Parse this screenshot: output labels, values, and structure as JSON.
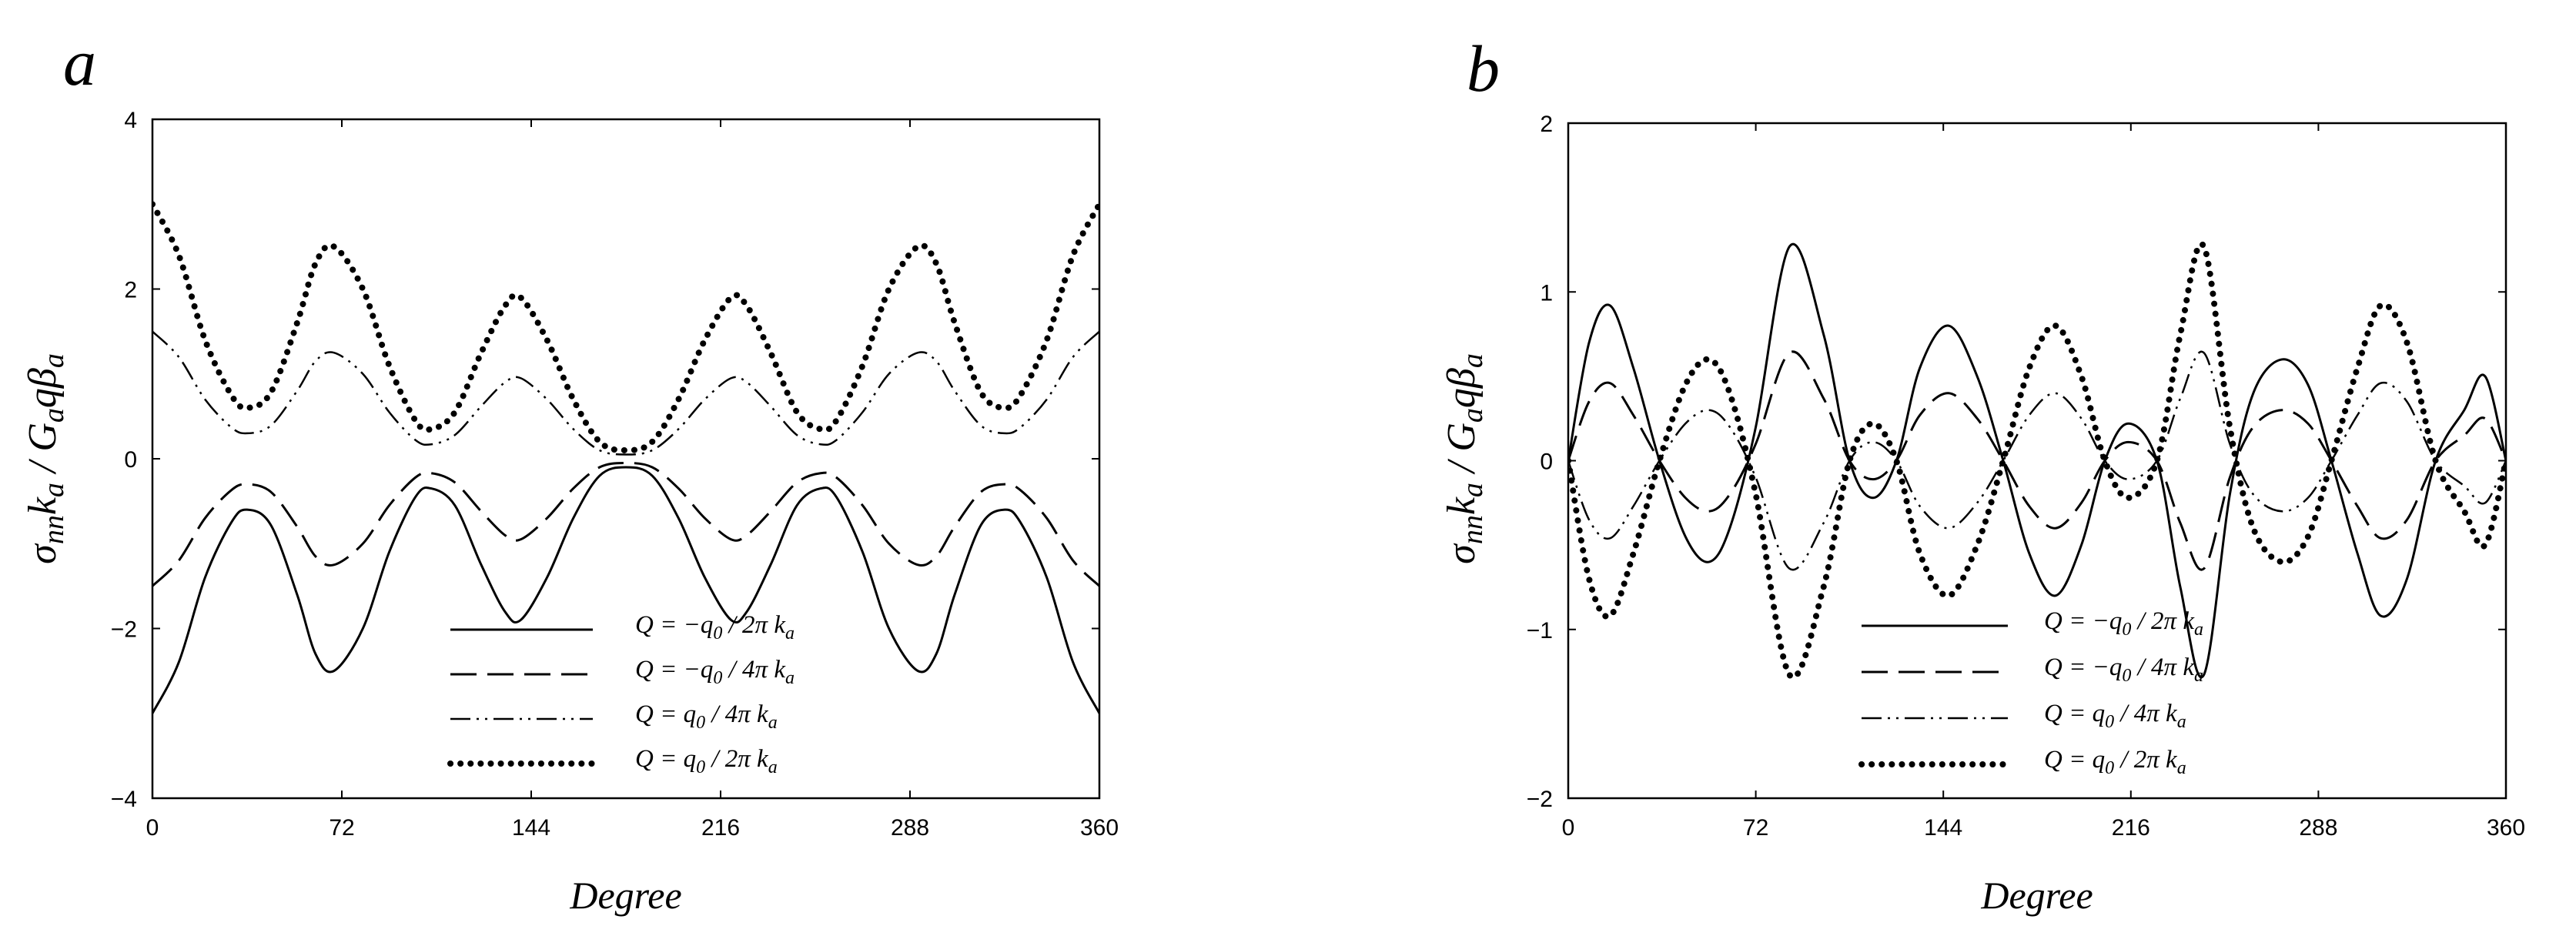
{
  "chart_data": [
    {
      "type": "line",
      "panel_label": "a",
      "xlabel": "Degree",
      "ylabel": "σnnka / Gaqβa",
      "x_ticks": [
        "0",
        "72",
        "144",
        "216",
        "288",
        "360"
      ],
      "y_ticks": [
        "−4",
        "−2",
        "0",
        "2",
        "4"
      ],
      "xlim": [
        0,
        360
      ],
      "ylim": [
        -4,
        4
      ],
      "grid": false,
      "legend_position": "bottom-center",
      "series": [
        {
          "name": "Q = −q0 / 2π ka",
          "style": "solid",
          "x": [
            0,
            10,
            20,
            30,
            36,
            45,
            55,
            62,
            69,
            80,
            90,
            100,
            106,
            115,
            125,
            134,
            140,
            150,
            160,
            170,
            180,
            190,
            200,
            210,
            220,
            226,
            235,
            245,
            254,
            260,
            270,
            280,
            291,
            298,
            305,
            315,
            324,
            330,
            340,
            350,
            360
          ],
          "y": [
            -3.0,
            -2.4,
            -1.4,
            -0.75,
            -0.6,
            -0.78,
            -1.6,
            -2.3,
            -2.5,
            -2.0,
            -1.1,
            -0.45,
            -0.35,
            -0.55,
            -1.25,
            -1.8,
            -1.9,
            -1.4,
            -0.7,
            -0.2,
            -0.1,
            -0.2,
            -0.7,
            -1.4,
            -1.9,
            -1.8,
            -1.25,
            -0.55,
            -0.35,
            -0.45,
            -1.1,
            -2.0,
            -2.5,
            -2.3,
            -1.6,
            -0.78,
            -0.6,
            -0.75,
            -1.4,
            -2.4,
            -3.0
          ]
        },
        {
          "name": "Q = −q0 / 4π ka",
          "style": "dashed",
          "x": [
            0,
            10,
            20,
            30,
            36,
            45,
            55,
            62,
            69,
            80,
            90,
            100,
            106,
            115,
            125,
            134,
            140,
            150,
            160,
            170,
            180,
            190,
            200,
            210,
            220,
            226,
            235,
            245,
            254,
            260,
            270,
            280,
            291,
            298,
            305,
            315,
            324,
            330,
            340,
            350,
            360
          ],
          "y": [
            -1.5,
            -1.2,
            -0.7,
            -0.37,
            -0.3,
            -0.39,
            -0.8,
            -1.15,
            -1.25,
            -1.0,
            -0.55,
            -0.22,
            -0.17,
            -0.28,
            -0.62,
            -0.9,
            -0.95,
            -0.7,
            -0.35,
            -0.1,
            -0.05,
            -0.1,
            -0.35,
            -0.7,
            -0.95,
            -0.9,
            -0.62,
            -0.28,
            -0.17,
            -0.22,
            -0.55,
            -1.0,
            -1.25,
            -1.15,
            -0.8,
            -0.39,
            -0.3,
            -0.37,
            -0.7,
            -1.2,
            -1.5
          ]
        },
        {
          "name": "Q = q0 / 4π ka",
          "style": "dash-dot-dot",
          "x": [
            0,
            10,
            20,
            30,
            36,
            45,
            55,
            62,
            69,
            80,
            90,
            100,
            106,
            115,
            125,
            134,
            140,
            150,
            160,
            170,
            180,
            190,
            200,
            210,
            220,
            226,
            235,
            245,
            254,
            260,
            270,
            280,
            291,
            298,
            305,
            315,
            324,
            330,
            340,
            350,
            360
          ],
          "y": [
            1.5,
            1.2,
            0.7,
            0.37,
            0.3,
            0.39,
            0.8,
            1.15,
            1.25,
            1.0,
            0.55,
            0.22,
            0.17,
            0.28,
            0.62,
            0.9,
            0.95,
            0.7,
            0.35,
            0.1,
            0.05,
            0.1,
            0.35,
            0.7,
            0.95,
            0.9,
            0.62,
            0.28,
            0.17,
            0.22,
            0.55,
            1.0,
            1.25,
            1.15,
            0.8,
            0.39,
            0.3,
            0.37,
            0.7,
            1.2,
            1.5
          ]
        },
        {
          "name": "Q = q0 / 2π ka",
          "style": "dotted",
          "x": [
            0,
            10,
            20,
            30,
            36,
            45,
            55,
            62,
            69,
            80,
            90,
            100,
            106,
            115,
            125,
            134,
            140,
            150,
            160,
            170,
            180,
            190,
            200,
            210,
            220,
            226,
            235,
            245,
            254,
            260,
            270,
            280,
            291,
            298,
            305,
            315,
            324,
            330,
            340,
            350,
            360
          ],
          "y": [
            3.0,
            2.4,
            1.4,
            0.75,
            0.6,
            0.78,
            1.6,
            2.3,
            2.5,
            2.0,
            1.1,
            0.45,
            0.35,
            0.55,
            1.25,
            1.8,
            1.9,
            1.4,
            0.7,
            0.2,
            0.1,
            0.2,
            0.7,
            1.4,
            1.9,
            1.8,
            1.25,
            0.55,
            0.35,
            0.45,
            1.1,
            2.0,
            2.5,
            2.3,
            1.6,
            0.78,
            0.6,
            0.75,
            1.4,
            2.4,
            3.0
          ]
        }
      ]
    },
    {
      "type": "line",
      "panel_label": "b",
      "xlabel": "Degree",
      "ylabel": "σnnka / Gaqβa",
      "x_ticks": [
        "0",
        "72",
        "144",
        "216",
        "288",
        "360"
      ],
      "y_ticks": [
        "−2",
        "−1",
        "0",
        "1",
        "2"
      ],
      "xlim": [
        0,
        360
      ],
      "ylim": [
        -2,
        2
      ],
      "grid": false,
      "legend_position": "bottom-center",
      "series": [
        {
          "name": "Q = −q0 / 2π ka",
          "style": "solid",
          "x": [
            0,
            8,
            16,
            25,
            35,
            45,
            54,
            62,
            72,
            85,
            98,
            108,
            117,
            126,
            135,
            146,
            157,
            167,
            177,
            187,
            197,
            206,
            215,
            226,
            235,
            244,
            254,
            263,
            274,
            284,
            293,
            303,
            312,
            322,
            333,
            344,
            352,
            360
          ],
          "y": [
            0,
            0.7,
            0.92,
            0.55,
            0,
            -0.45,
            -0.6,
            -0.4,
            0.2,
            1.27,
            0.75,
            0,
            -0.22,
            0,
            0.55,
            0.8,
            0.5,
            0,
            -0.55,
            -0.8,
            -0.5,
            0,
            0.22,
            0,
            -0.75,
            -1.27,
            -0.2,
            0.4,
            0.6,
            0.45,
            0,
            -0.55,
            -0.92,
            -0.7,
            0,
            0.3,
            0.5,
            0
          ]
        },
        {
          "name": "Q = −q0 / 4π ka",
          "style": "dashed",
          "x": [
            0,
            8,
            16,
            25,
            35,
            45,
            54,
            62,
            72,
            85,
            98,
            108,
            117,
            126,
            135,
            146,
            157,
            167,
            177,
            187,
            197,
            206,
            215,
            226,
            235,
            244,
            254,
            263,
            274,
            284,
            293,
            303,
            312,
            322,
            333,
            344,
            352,
            360
          ],
          "y": [
            0,
            0.35,
            0.46,
            0.27,
            0,
            -0.22,
            -0.3,
            -0.2,
            0.1,
            0.64,
            0.37,
            0,
            -0.11,
            0,
            0.27,
            0.4,
            0.25,
            0,
            -0.27,
            -0.4,
            -0.25,
            0,
            0.11,
            0,
            -0.37,
            -0.64,
            -0.1,
            0.2,
            0.3,
            0.22,
            0,
            -0.27,
            -0.46,
            -0.35,
            0,
            0.15,
            0.25,
            0
          ]
        },
        {
          "name": "Q = q0 / 4π ka",
          "style": "dash-dot-dot",
          "x": [
            0,
            8,
            16,
            25,
            35,
            45,
            54,
            62,
            72,
            85,
            98,
            108,
            117,
            126,
            135,
            146,
            157,
            167,
            177,
            187,
            197,
            206,
            215,
            226,
            235,
            244,
            254,
            263,
            274,
            284,
            293,
            303,
            312,
            322,
            333,
            344,
            352,
            360
          ],
          "y": [
            0,
            -0.35,
            -0.46,
            -0.27,
            0,
            0.22,
            0.3,
            0.2,
            -0.1,
            -0.64,
            -0.37,
            0,
            0.11,
            0,
            -0.27,
            -0.4,
            -0.25,
            0,
            0.27,
            0.4,
            0.25,
            0,
            -0.11,
            0,
            0.37,
            0.64,
            0.1,
            -0.2,
            -0.3,
            -0.22,
            0,
            0.27,
            0.46,
            0.35,
            0,
            -0.15,
            -0.25,
            0
          ]
        },
        {
          "name": "Q = q0 / 2π ka",
          "style": "dotted",
          "x": [
            0,
            8,
            16,
            25,
            35,
            45,
            54,
            62,
            72,
            85,
            98,
            108,
            117,
            126,
            135,
            146,
            157,
            167,
            177,
            187,
            197,
            206,
            215,
            226,
            235,
            244,
            254,
            263,
            274,
            284,
            293,
            303,
            312,
            322,
            333,
            344,
            352,
            360
          ],
          "y": [
            0,
            -0.7,
            -0.92,
            -0.55,
            0,
            0.45,
            0.6,
            0.4,
            -0.2,
            -1.27,
            -0.75,
            0,
            0.22,
            0,
            -0.55,
            -0.8,
            -0.5,
            0,
            0.55,
            0.8,
            0.5,
            0,
            -0.22,
            0,
            0.75,
            1.27,
            0.2,
            -0.4,
            -0.6,
            -0.45,
            0,
            0.55,
            0.92,
            0.7,
            0,
            -0.3,
            -0.5,
            0
          ]
        }
      ]
    }
  ]
}
